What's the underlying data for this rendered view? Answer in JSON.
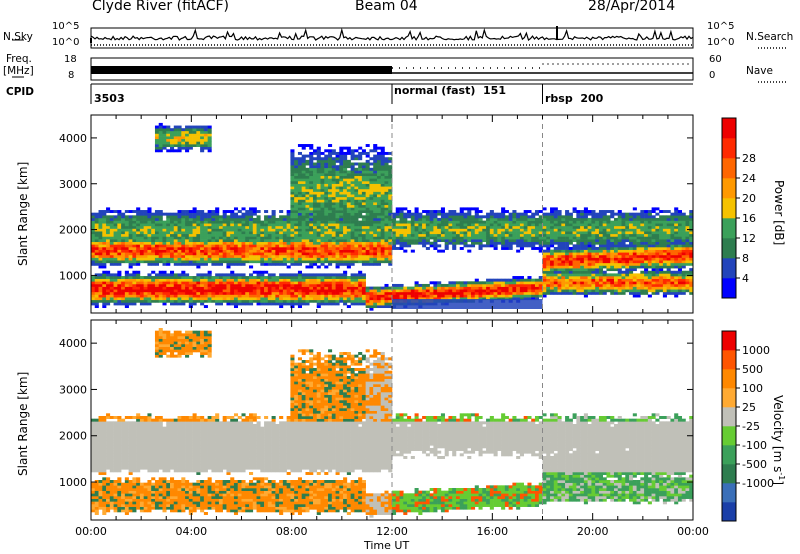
{
  "header": {
    "station": "Clyde River (fitACF)",
    "beam": "Beam 04",
    "date": "28/Apr/2014"
  },
  "side_labels": {
    "nsky": "N.Sky",
    "nsearch": "N.Search",
    "freq": "Freq.",
    "freq_unit": "[MHz]",
    "nave": "Nave",
    "cpid": "CPID"
  },
  "noise_axis": {
    "left_ticks": [
      "10^5",
      "10^0"
    ],
    "right_ticks": [
      "10^5",
      "10^0"
    ]
  },
  "freq_axis": {
    "left_ticks": [
      "18",
      "8"
    ],
    "right_ticks": [
      "60",
      "0"
    ]
  },
  "cpid_segments": [
    {
      "label": "3503",
      "start_hour": 0
    },
    {
      "label": "normal (fast)  151",
      "start_hour": 12
    },
    {
      "label": "rbsp  200",
      "start_hour": 18
    }
  ],
  "chart_data": [
    {
      "type": "heatmap",
      "name": "power",
      "ylabel": "Slant Range [km]",
      "xlabel": "Time UT",
      "x_ticks": [
        "00:00",
        "04:00",
        "08:00",
        "12:00",
        "16:00",
        "20:00",
        "00:00"
      ],
      "y_ticks": [
        "1000",
        "2000",
        "3000",
        "4000"
      ],
      "xlim": [
        0,
        24
      ],
      "ylim": [
        180,
        4500
      ],
      "colorbar": {
        "label": "Power [dB]",
        "ticks": [
          "4",
          "8",
          "12",
          "16",
          "20",
          "24",
          "28"
        ],
        "colors": [
          "#0000ff",
          "#2244bb",
          "#2e7d4f",
          "#3ba05a",
          "#f5c200",
          "#ff9900",
          "#ff6600",
          "#ff2a00",
          "#ee0000"
        ]
      }
    },
    {
      "type": "heatmap",
      "name": "velocity",
      "ylabel": "Slant Range [km]",
      "xlabel": "Time UT",
      "x_ticks": [
        "00:00",
        "04:00",
        "08:00",
        "12:00",
        "16:00",
        "20:00",
        "00:00"
      ],
      "y_ticks": [
        "1000",
        "2000",
        "3000",
        "4000"
      ],
      "xlim": [
        0,
        24
      ],
      "ylim": [
        180,
        4500
      ],
      "colorbar": {
        "label": "Velocity [m s",
        "label_sup": "-1",
        "label_end": "]",
        "ticks": [
          "1000",
          "500",
          "100",
          "25",
          "-25",
          "-100",
          "-500",
          "-1000"
        ],
        "colors": [
          "#1a3fa8",
          "#3a6fb8",
          "#2e7d4f",
          "#3ba05a",
          "#66cc33",
          "#c0c0b8",
          "#ffaa33",
          "#ff8800",
          "#ff5500",
          "#ee0000"
        ]
      }
    }
  ]
}
